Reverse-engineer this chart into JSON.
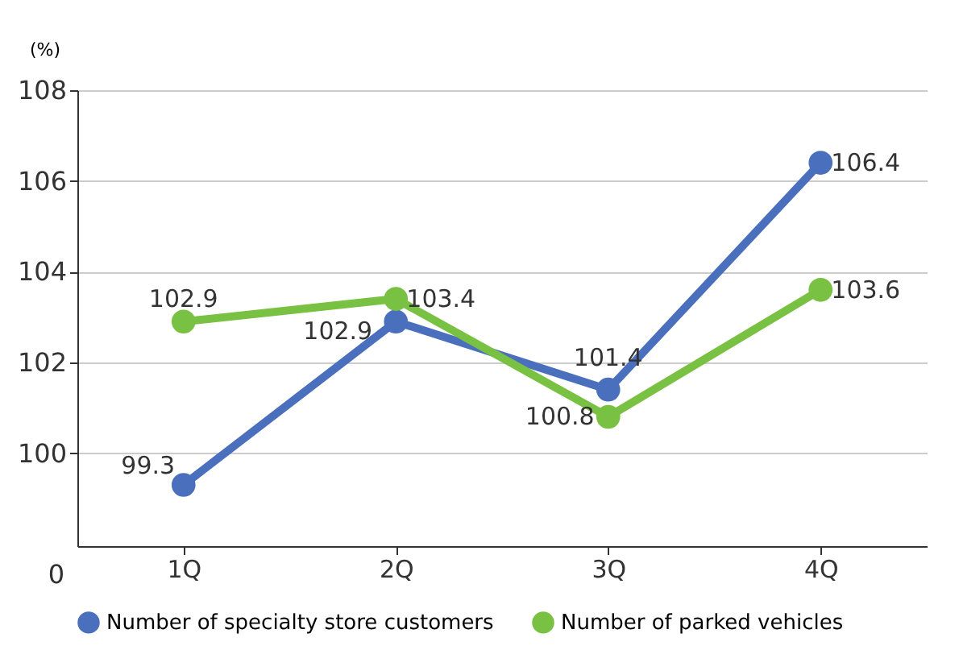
{
  "chart_data": {
    "type": "line",
    "ylabel": "(%)",
    "categories": [
      "1Q",
      "2Q",
      "3Q",
      "4Q"
    ],
    "series": [
      {
        "name": "Number of specialty store customers",
        "color": "#4a6fbd",
        "values": [
          99.3,
          102.9,
          101.4,
          106.4
        ]
      },
      {
        "name": "Number of parked vehicles",
        "color": "#79c143",
        "values": [
          102.9,
          103.4,
          100.8,
          103.6
        ]
      }
    ],
    "ylim": [
      97.95,
      108
    ],
    "yticks": [
      100,
      102,
      104,
      106,
      108
    ],
    "annotations": [
      "0"
    ],
    "grid": "y",
    "legend": "bottom",
    "marker": "circle",
    "line_style": "solid",
    "data_labels": true
  }
}
